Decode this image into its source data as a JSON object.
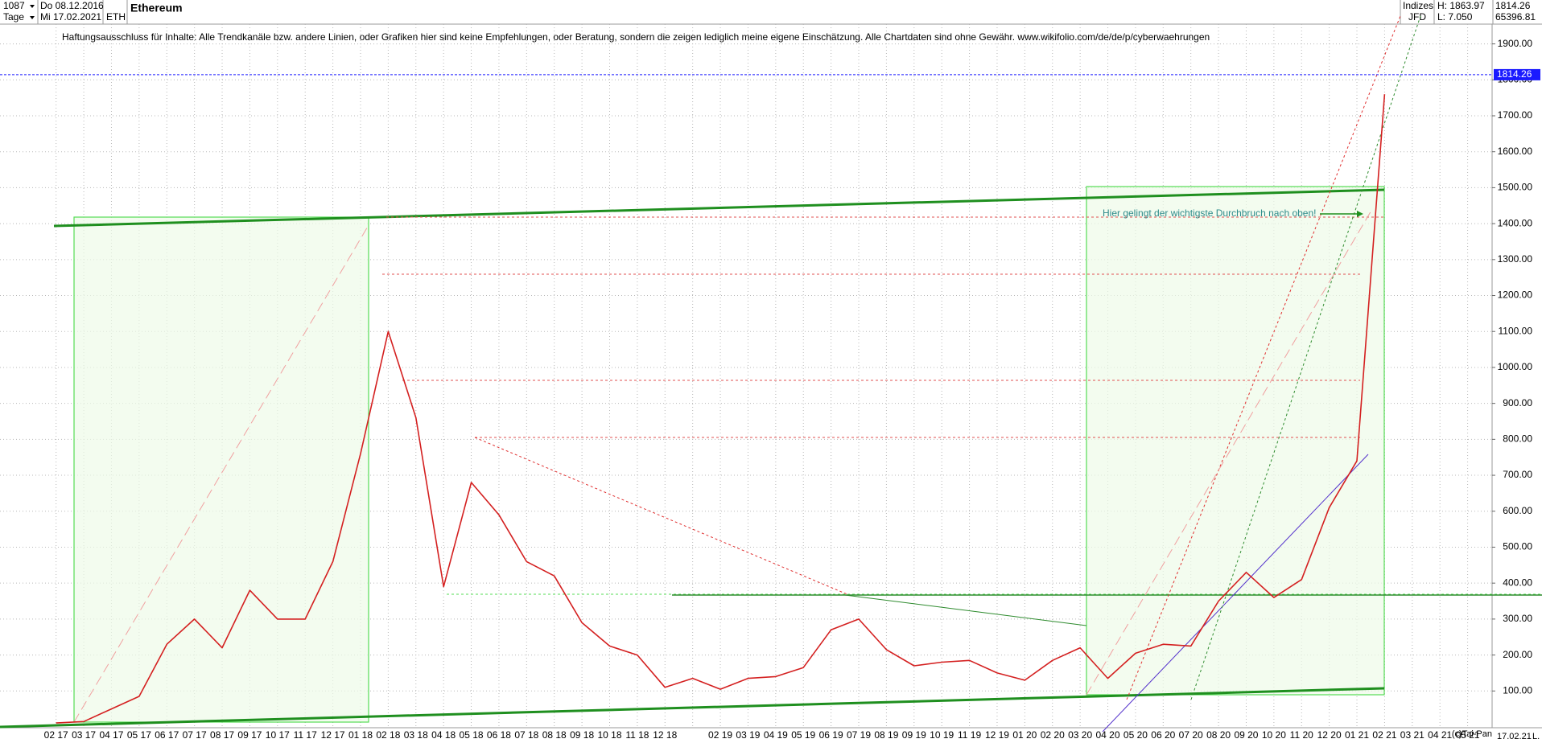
{
  "header": {
    "count": "1087",
    "from_date": "Do 08.12.2016",
    "period": "Tage",
    "to_date": "Mi 17.02.2021",
    "symbol": "ETH",
    "name": "Ethereum",
    "group": "Indizes",
    "source": "JFD",
    "high": "H: 1863.97",
    "low": "L: 7.050",
    "last": "1814.26",
    "volume": "65396.81"
  },
  "footer": {
    "copyright": "(c)Tai-Pan",
    "date": "17.02.21",
    "marker": "L."
  },
  "chart_data": {
    "type": "line",
    "title": "Ethereum",
    "disclaimer": "Haftungsausschluss für Inhalte: Alle Trendkanäle bzw. andere Linien, oder Grafiken hier sind keine Empfehlungen, oder Beratung, sondern die zeigen lediglich meine eigene Einschätzung. Alle Chartdaten sind ohne Gewähr.  www.wikifolio.com/de/de/p/cyberwaehrungen",
    "annotation": "Hier gelingt der wichtigste Durchbruch nach oben!",
    "categories": [
      "02 17",
      "03 17",
      "04 17",
      "05 17",
      "06 17",
      "07 17",
      "08 17",
      "09 17",
      "10 17",
      "11 17",
      "12 17",
      "01 18",
      "02 18",
      "03 18",
      "04 18",
      "05 18",
      "06 18",
      "07 18",
      "08 18",
      "09 18",
      "10 18",
      "11 18",
      "12 18",
      null,
      "02 19",
      "03 19",
      "04 19",
      "05 19",
      "06 19",
      "07 19",
      "08 19",
      "09 19",
      "10 19",
      "11 19",
      "12 19",
      "01 20",
      "02 20",
      "03 20",
      "04 20",
      "05 20",
      "06 20",
      "07 20",
      "08 20",
      "09 20",
      "10 20",
      "11 20",
      "12 20",
      "01 21",
      "02 21",
      "03 21",
      "04 21",
      "05 21"
    ],
    "values": [
      11,
      15,
      50,
      85,
      230,
      300,
      220,
      380,
      300,
      300,
      460,
      760,
      1100,
      860,
      390,
      680,
      590,
      460,
      420,
      290,
      225,
      200,
      110,
      135,
      105,
      135,
      140,
      165,
      270,
      300,
      215,
      170,
      180,
      185,
      150,
      130,
      185,
      220,
      135,
      205,
      230,
      225,
      350,
      430,
      360,
      410,
      610,
      740,
      1760,
      null,
      null,
      null
    ],
    "color": "#d42020",
    "last_price": 1814.26,
    "last_price_color": "#1a1aff",
    "ylim": [
      0,
      1955
    ],
    "yticks": [
      {
        "value": 100,
        "label": "100.00"
      },
      {
        "value": 200,
        "label": "200.00"
      },
      {
        "value": 300,
        "label": "300.00"
      },
      {
        "value": 400,
        "label": "400.00"
      },
      {
        "value": 500,
        "label": "500.00"
      },
      {
        "value": 600,
        "label": "600.00"
      },
      {
        "value": 700,
        "label": "700.00"
      },
      {
        "value": 800,
        "label": "800.00"
      },
      {
        "value": 900,
        "label": "900.00"
      },
      {
        "value": 1000,
        "label": "1000.00"
      },
      {
        "value": 1100,
        "label": "1100.00"
      },
      {
        "value": 1200,
        "label": "1200.00"
      },
      {
        "value": 1300,
        "label": "1300.00"
      },
      {
        "value": 1400,
        "label": "1400.00"
      },
      {
        "value": 1500,
        "label": "1500.00"
      },
      {
        "value": 1600,
        "label": "1600.00"
      },
      {
        "value": 1700,
        "label": "1700.00"
      },
      {
        "value": 1800,
        "label": "1800.00"
      },
      {
        "value": 1900,
        "label": "1900.00"
      }
    ],
    "grid": true
  }
}
